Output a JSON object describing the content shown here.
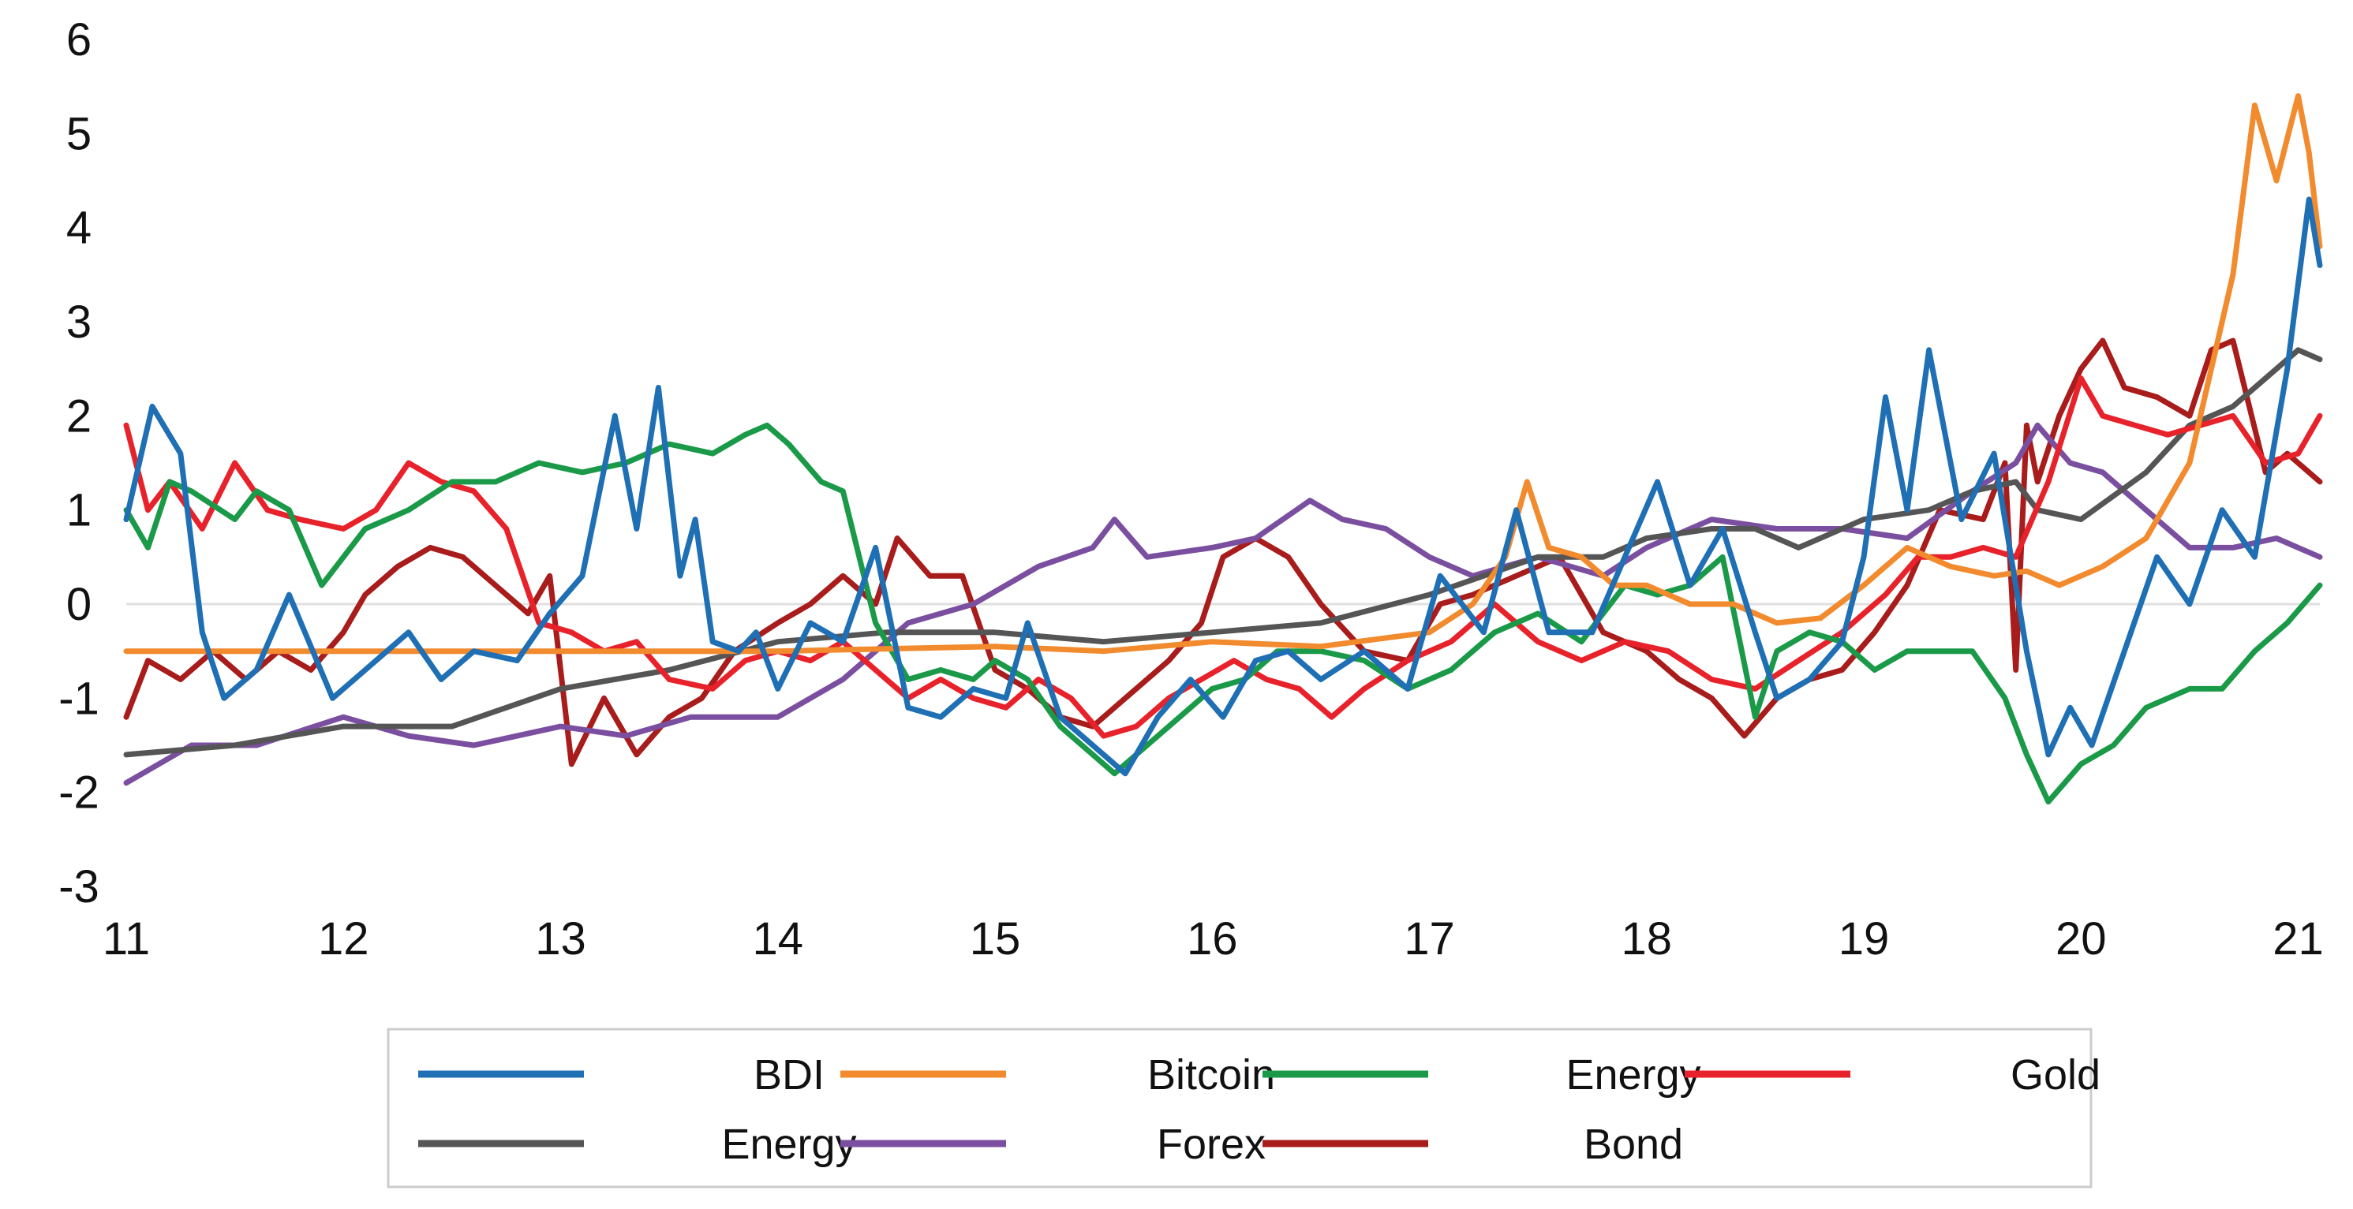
{
  "chart_data": {
    "type": "line",
    "title": "",
    "xlabel": "",
    "ylabel": "",
    "xlim": [
      11,
      21.1
    ],
    "ylim": [
      -3,
      6
    ],
    "xticks": [
      "11",
      "12",
      "13",
      "14",
      "15",
      "16",
      "17",
      "18",
      "19",
      "20",
      "21"
    ],
    "yticks": [
      "6",
      "5",
      "4",
      "3",
      "2",
      "1",
      "0",
      "-1",
      "-2",
      "-3"
    ],
    "grid": false,
    "zero_line": true,
    "legend_position": "bottom",
    "series": [
      {
        "name": "BDI",
        "color": "#1F6FB4",
        "x": [
          11.0,
          11.12,
          11.25,
          11.35,
          11.45,
          11.6,
          11.75,
          11.95,
          12.1,
          12.3,
          12.45,
          12.6,
          12.8,
          12.95,
          13.1,
          13.25,
          13.35,
          13.45,
          13.55,
          13.62,
          13.7,
          13.82,
          13.9,
          14.0,
          14.15,
          14.3,
          14.45,
          14.6,
          14.75,
          14.9,
          15.05,
          15.15,
          15.3,
          15.45,
          15.6,
          15.75,
          15.9,
          16.05,
          16.2,
          16.35,
          16.5,
          16.7,
          16.9,
          17.05,
          17.25,
          17.4,
          17.55,
          17.75,
          17.9,
          18.05,
          18.2,
          18.35,
          18.5,
          18.6,
          18.75,
          18.9,
          19.0,
          19.1,
          19.2,
          19.3,
          19.45,
          19.6,
          19.75,
          19.85,
          19.95,
          20.05,
          20.2,
          20.35,
          20.5,
          20.65,
          20.8,
          20.95,
          21.05,
          21.1
        ],
        "values": [
          0.9,
          2.1,
          1.6,
          -0.3,
          -1.0,
          -0.7,
          0.1,
          -1.0,
          -0.7,
          -0.3,
          -0.8,
          -0.5,
          -0.6,
          -0.1,
          0.3,
          2.0,
          0.8,
          2.3,
          0.3,
          0.9,
          -0.4,
          -0.5,
          -0.3,
          -0.9,
          -0.2,
          -0.4,
          0.6,
          -1.1,
          -1.2,
          -0.9,
          -1.0,
          -0.2,
          -1.2,
          -1.5,
          -1.8,
          -1.2,
          -0.8,
          -1.2,
          -0.6,
          -0.5,
          -0.8,
          -0.5,
          -0.9,
          0.3,
          -0.3,
          1.0,
          -0.3,
          -0.3,
          0.5,
          1.3,
          0.2,
          0.8,
          -0.3,
          -1.0,
          -0.8,
          -0.4,
          0.5,
          2.2,
          1.0,
          2.7,
          0.9,
          1.6,
          -0.5,
          -1.6,
          -1.1,
          -1.5,
          -0.5,
          0.5,
          0.0,
          1.0,
          0.5,
          2.5,
          4.3,
          3.6
        ]
      },
      {
        "name": "Bitcoin",
        "color": "#F28A2E",
        "x": [
          11.0,
          12.0,
          13.0,
          14.0,
          15.0,
          15.5,
          16.0,
          16.5,
          17.0,
          17.2,
          17.35,
          17.45,
          17.55,
          17.7,
          17.85,
          18.0,
          18.2,
          18.4,
          18.6,
          18.8,
          19.0,
          19.2,
          19.4,
          19.6,
          19.75,
          19.9,
          20.1,
          20.3,
          20.5,
          20.6,
          20.7,
          20.8,
          20.9,
          21.0,
          21.05,
          21.1
        ],
        "values": [
          -0.5,
          -0.5,
          -0.5,
          -0.5,
          -0.45,
          -0.5,
          -0.4,
          -0.45,
          -0.3,
          0.0,
          0.5,
          1.3,
          0.6,
          0.5,
          0.2,
          0.2,
          0.0,
          0.0,
          -0.2,
          -0.15,
          0.2,
          0.6,
          0.4,
          0.3,
          0.35,
          0.2,
          0.4,
          0.7,
          1.5,
          2.5,
          3.5,
          5.3,
          4.5,
          5.4,
          4.8,
          3.8
        ]
      },
      {
        "name": "Energy",
        "color": "#1A9A48",
        "x": [
          11.0,
          11.1,
          11.2,
          11.3,
          11.5,
          11.6,
          11.75,
          11.9,
          12.1,
          12.3,
          12.5,
          12.7,
          12.9,
          13.1,
          13.3,
          13.5,
          13.7,
          13.85,
          13.95,
          14.05,
          14.2,
          14.3,
          14.45,
          14.6,
          14.75,
          14.9,
          15.0,
          15.15,
          15.3,
          15.45,
          15.55,
          15.7,
          15.85,
          16.0,
          16.15,
          16.3,
          16.5,
          16.7,
          16.9,
          17.1,
          17.3,
          17.5,
          17.7,
          17.9,
          18.05,
          18.2,
          18.35,
          18.5,
          18.6,
          18.75,
          18.9,
          19.05,
          19.2,
          19.35,
          19.5,
          19.65,
          19.75,
          19.85,
          20.0,
          20.15,
          20.3,
          20.5,
          20.65,
          20.8,
          20.95,
          21.1
        ],
        "values": [
          1.0,
          0.6,
          1.3,
          1.2,
          0.9,
          1.2,
          1.0,
          0.2,
          0.8,
          1.0,
          1.3,
          1.3,
          1.5,
          1.4,
          1.5,
          1.7,
          1.6,
          1.8,
          1.9,
          1.7,
          1.3,
          1.2,
          -0.2,
          -0.8,
          -0.7,
          -0.8,
          -0.6,
          -0.8,
          -1.3,
          -1.6,
          -1.8,
          -1.5,
          -1.2,
          -0.9,
          -0.8,
          -0.5,
          -0.5,
          -0.6,
          -0.9,
          -0.7,
          -0.3,
          -0.1,
          -0.4,
          0.2,
          0.1,
          0.2,
          0.5,
          -1.2,
          -0.5,
          -0.3,
          -0.4,
          -0.7,
          -0.5,
          -0.5,
          -0.5,
          -1.0,
          -1.6,
          -2.1,
          -1.7,
          -1.5,
          -1.1,
          -0.9,
          -0.9,
          -0.5,
          -0.2,
          0.2
        ]
      },
      {
        "name": "Gold",
        "color": "#E8222A",
        "x": [
          11.0,
          11.1,
          11.2,
          11.35,
          11.5,
          11.65,
          11.8,
          12.0,
          12.15,
          12.3,
          12.45,
          12.6,
          12.75,
          12.9,
          13.05,
          13.2,
          13.35,
          13.5,
          13.7,
          13.85,
          14.0,
          14.15,
          14.3,
          14.45,
          14.6,
          14.75,
          14.9,
          15.05,
          15.2,
          15.35,
          15.5,
          15.65,
          15.8,
          15.95,
          16.1,
          16.25,
          16.4,
          16.55,
          16.7,
          16.9,
          17.1,
          17.3,
          17.5,
          17.7,
          17.9,
          18.1,
          18.3,
          18.5,
          18.7,
          18.9,
          19.1,
          19.25,
          19.4,
          19.55,
          19.7,
          19.85,
          20.0,
          20.1,
          20.25,
          20.4,
          20.55,
          20.7,
          20.85,
          21.0,
          21.1
        ],
        "values": [
          1.9,
          1.0,
          1.3,
          0.8,
          1.5,
          1.0,
          0.9,
          0.8,
          1.0,
          1.5,
          1.3,
          1.2,
          0.8,
          -0.2,
          -0.3,
          -0.5,
          -0.4,
          -0.8,
          -0.9,
          -0.6,
          -0.5,
          -0.6,
          -0.4,
          -0.7,
          -1.0,
          -0.8,
          -1.0,
          -1.1,
          -0.8,
          -1.0,
          -1.4,
          -1.3,
          -1.0,
          -0.8,
          -0.6,
          -0.8,
          -0.9,
          -1.2,
          -0.9,
          -0.6,
          -0.4,
          0.0,
          -0.4,
          -0.6,
          -0.4,
          -0.5,
          -0.8,
          -0.9,
          -0.6,
          -0.3,
          0.1,
          0.5,
          0.5,
          0.6,
          0.5,
          1.3,
          2.4,
          2.0,
          1.9,
          1.8,
          1.9,
          2.0,
          1.5,
          1.6,
          2.0
        ]
      },
      {
        "name": "Energy",
        "color": "#555555",
        "x": [
          11.0,
          11.5,
          12.0,
          12.5,
          13.0,
          13.5,
          14.0,
          14.5,
          15.0,
          15.5,
          16.0,
          16.5,
          17.0,
          17.5,
          17.8,
          18.0,
          18.3,
          18.5,
          18.7,
          19.0,
          19.3,
          19.5,
          19.7,
          19.8,
          20.0,
          20.3,
          20.5,
          20.7,
          20.9,
          21.0,
          21.1
        ],
        "values": [
          -1.6,
          -1.5,
          -1.3,
          -1.3,
          -0.9,
          -0.7,
          -0.4,
          -0.3,
          -0.3,
          -0.4,
          -0.3,
          -0.2,
          0.1,
          0.5,
          0.5,
          0.7,
          0.8,
          0.8,
          0.6,
          0.9,
          1.0,
          1.2,
          1.3,
          1.0,
          0.9,
          1.4,
          1.9,
          2.1,
          2.5,
          2.7,
          2.6
        ]
      },
      {
        "name": "Forex",
        "color": "#7B4FA0",
        "x": [
          11.0,
          11.3,
          11.6,
          12.0,
          12.3,
          12.6,
          13.0,
          13.3,
          13.6,
          14.0,
          14.3,
          14.6,
          14.9,
          15.2,
          15.45,
          15.55,
          15.7,
          16.0,
          16.2,
          16.45,
          16.6,
          16.8,
          17.0,
          17.2,
          17.5,
          17.8,
          18.0,
          18.3,
          18.6,
          18.9,
          19.2,
          19.5,
          19.7,
          19.8,
          19.95,
          20.1,
          20.3,
          20.5,
          20.7,
          20.9,
          21.1
        ],
        "values": [
          -1.9,
          -1.5,
          -1.5,
          -1.2,
          -1.4,
          -1.5,
          -1.3,
          -1.4,
          -1.2,
          -1.2,
          -0.8,
          -0.2,
          0.0,
          0.4,
          0.6,
          0.9,
          0.5,
          0.6,
          0.7,
          1.1,
          0.9,
          0.8,
          0.5,
          0.3,
          0.5,
          0.3,
          0.6,
          0.9,
          0.8,
          0.8,
          0.7,
          1.2,
          1.5,
          1.9,
          1.5,
          1.4,
          1.0,
          0.6,
          0.6,
          0.7,
          0.5
        ]
      },
      {
        "name": "Bond",
        "color": "#A81C1C",
        "x": [
          11.0,
          11.1,
          11.25,
          11.4,
          11.55,
          11.7,
          11.85,
          12.0,
          12.1,
          12.25,
          12.4,
          12.55,
          12.7,
          12.85,
          12.95,
          13.05,
          13.2,
          13.35,
          13.5,
          13.65,
          13.8,
          14.0,
          14.15,
          14.3,
          14.45,
          14.55,
          14.7,
          14.85,
          15.0,
          15.15,
          15.3,
          15.45,
          15.6,
          15.8,
          15.95,
          16.05,
          16.2,
          16.35,
          16.5,
          16.7,
          16.9,
          17.05,
          17.2,
          17.4,
          17.6,
          17.8,
          18.0,
          18.15,
          18.3,
          18.45,
          18.6,
          18.75,
          18.9,
          19.05,
          19.2,
          19.35,
          19.55,
          19.65,
          19.7,
          19.75,
          19.8,
          19.9,
          20.0,
          20.1,
          20.2,
          20.35,
          20.5,
          20.6,
          20.7,
          20.85,
          20.95,
          21.1
        ],
        "values": [
          -1.2,
          -0.6,
          -0.8,
          -0.5,
          -0.8,
          -0.5,
          -0.7,
          -0.3,
          0.1,
          0.4,
          0.6,
          0.5,
          0.2,
          -0.1,
          0.3,
          -1.7,
          -1.0,
          -1.6,
          -1.2,
          -1.0,
          -0.5,
          -0.2,
          0.0,
          0.3,
          0.0,
          0.7,
          0.3,
          0.3,
          -0.7,
          -0.9,
          -1.2,
          -1.3,
          -1.0,
          -0.6,
          -0.2,
          0.5,
          0.7,
          0.5,
          0.0,
          -0.5,
          -0.6,
          0.0,
          0.1,
          0.3,
          0.5,
          -0.3,
          -0.5,
          -0.8,
          -1.0,
          -1.4,
          -1.0,
          -0.8,
          -0.7,
          -0.3,
          0.2,
          1.0,
          0.9,
          1.5,
          -0.7,
          1.9,
          1.3,
          2.0,
          2.5,
          2.8,
          2.3,
          2.2,
          2.0,
          2.7,
          2.8,
          1.4,
          1.6,
          1.3
        ]
      }
    ]
  }
}
